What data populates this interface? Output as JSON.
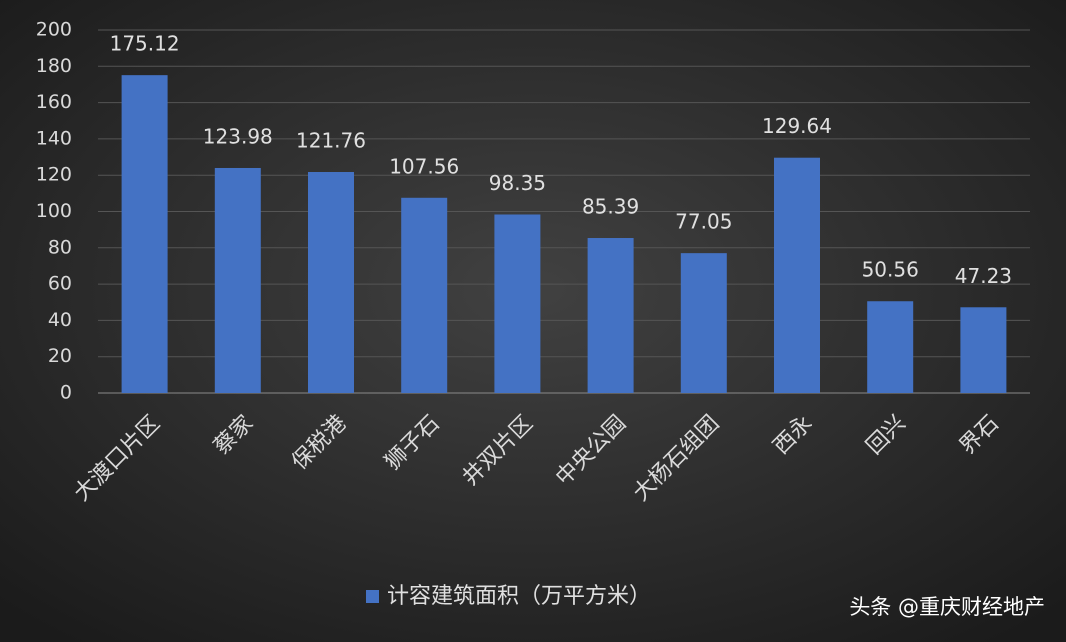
{
  "chart_data": {
    "type": "bar",
    "categories": [
      "大渡口片区",
      "蔡家",
      "保税港",
      "狮子石",
      "井双片区",
      "中央公园",
      "大杨石组团",
      "西永",
      "回兴",
      "界石"
    ],
    "series": [
      {
        "name": "计容建筑面积（万平方米）",
        "color": "#4472c4",
        "values": [
          175.12,
          123.98,
          121.76,
          107.56,
          98.35,
          85.39,
          77.05,
          129.64,
          50.56,
          47.23
        ]
      }
    ],
    "ylim": [
      0,
      200
    ],
    "yticks": [
      0,
      20,
      40,
      60,
      80,
      100,
      120,
      140,
      160,
      180,
      200
    ],
    "grid": true,
    "legend": "bottom"
  },
  "watermark": "头条 @重庆财经地产"
}
